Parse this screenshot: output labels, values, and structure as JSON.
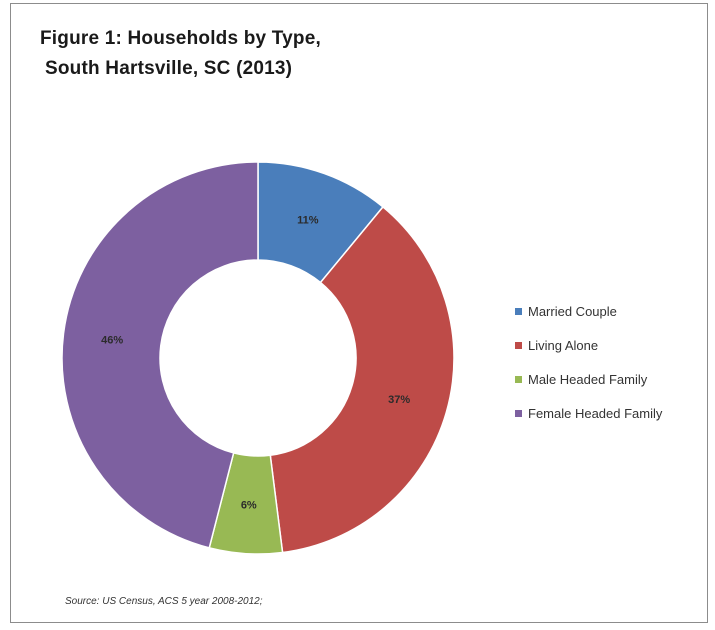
{
  "chart_data": {
    "type": "pie",
    "variant": "donut",
    "title_line1": "Figure 1: Households by Type,",
    "title_line2": "South Hartsville, SC (2013)",
    "slices": [
      {
        "label": "Married Couple",
        "value": 11,
        "display": "11%",
        "color": "#4a7ebb"
      },
      {
        "label": "Living Alone",
        "value": 37,
        "display": "37%",
        "color": "#be4b48"
      },
      {
        "label": "Male Headed Family",
        "value": 6,
        "display": "6%",
        "color": "#98b954"
      },
      {
        "label": "Female Headed Family",
        "value": 46,
        "display": "46%",
        "color": "#7d60a0"
      }
    ],
    "legend_position": "right",
    "source": "Source: US Census, ACS 5 year 2008-2012;"
  }
}
